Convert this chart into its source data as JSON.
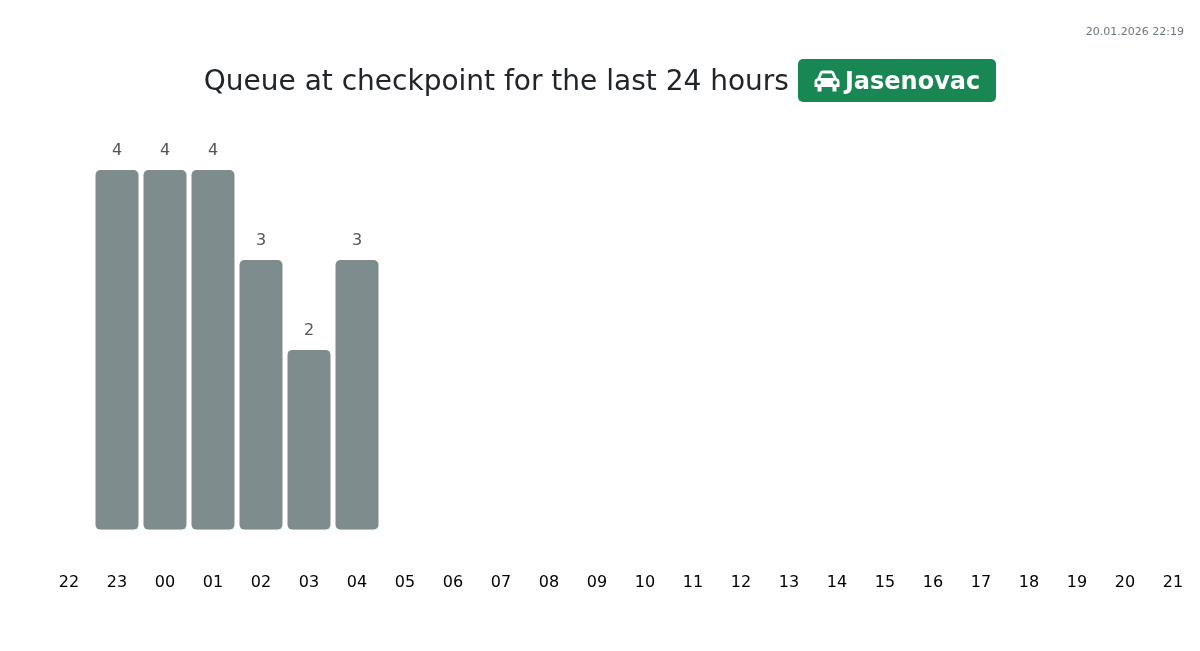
{
  "chart_data": {
    "type": "bar",
    "title": "Queue at checkpoint for the last 24 hours",
    "subtitle": "Jasenovac",
    "annotations": [
      "20.01.2026 22:19"
    ],
    "categories": [
      "22",
      "23",
      "00",
      "01",
      "02",
      "03",
      "04",
      "05",
      "06",
      "07",
      "08",
      "09",
      "10",
      "11",
      "12",
      "13",
      "14",
      "15",
      "16",
      "17",
      "18",
      "19",
      "20",
      "21"
    ],
    "values": [
      null,
      4,
      4,
      4,
      3,
      2,
      3,
      null,
      null,
      null,
      null,
      null,
      null,
      null,
      null,
      null,
      null,
      null,
      null,
      null,
      null,
      null,
      null,
      null
    ],
    "color": "#7f8c8d",
    "data_labels": true
  }
}
